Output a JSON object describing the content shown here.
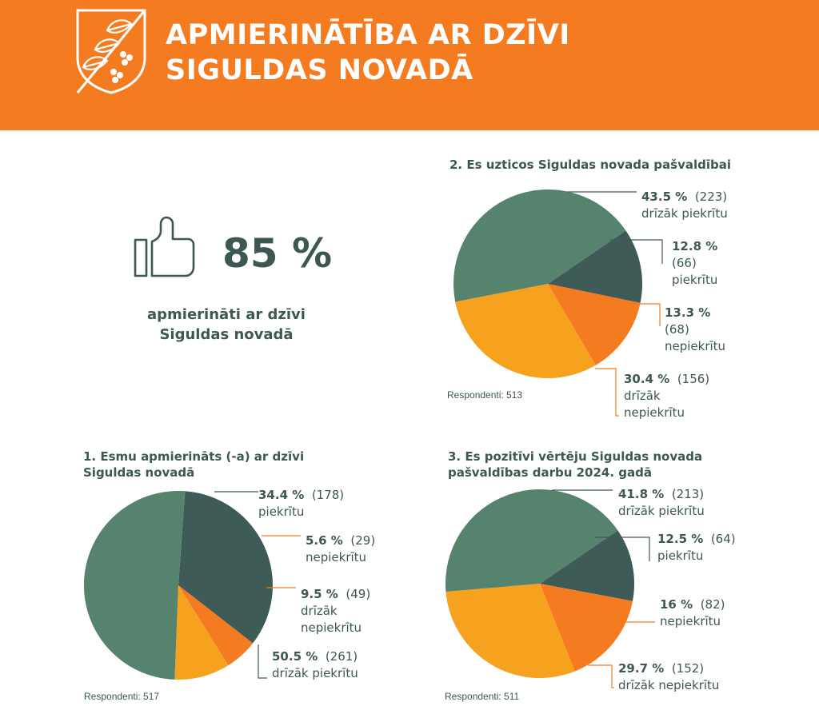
{
  "header": {
    "title_line1": "APMIERINĀTĪBA AR DZĪVI",
    "title_line2": "SIGULDAS NOVADĀ",
    "background": "#f47b20"
  },
  "hero": {
    "icon": "thumbs-up-icon",
    "value": "85 %",
    "caption_line1": "apmierināti ar dzīvi",
    "caption_line2": "Siguldas novadā"
  },
  "colors": {
    "dark_green": "#3e5b58",
    "green": "#56836e",
    "orange": "#f47b20",
    "amber": "#f6a21e",
    "text": "#3d5753"
  },
  "chart_data": [
    {
      "id": "chart1",
      "type": "pie",
      "title_line1": "1. Esmu apmierināts (-a) ar dzīvi",
      "title_line2": "Siguldas novadā",
      "respondents": "Respondenti: 517",
      "slices": [
        {
          "percent": 34.4,
          "percent_text": "34.4 %",
          "count_text": "(178)",
          "label": "piekrītu",
          "color": "#3e5b58"
        },
        {
          "percent": 5.6,
          "percent_text": "5.6 %",
          "count_text": "(29)",
          "label": "nepiekrītu",
          "color": "#f47b20"
        },
        {
          "percent": 9.5,
          "percent_text": "9.5 %",
          "count_text": "(49)",
          "label": "drīzāk nepiekrītu",
          "color": "#f6a21e"
        },
        {
          "percent": 50.5,
          "percent_text": "50.5 %",
          "count_text": "(261)",
          "label": "drīzāk piekrītu",
          "color": "#56836e"
        }
      ]
    },
    {
      "id": "chart2",
      "type": "pie",
      "title_line1": "2. Es uzticos Siguldas novada pašvaldībai",
      "title_line2": "",
      "respondents": "Respondenti: 513",
      "slices": [
        {
          "percent": 12.8,
          "percent_text": "12.8 %",
          "count_text": "(66)",
          "label": "piekrītu",
          "color": "#3e5b58"
        },
        {
          "percent": 13.3,
          "percent_text": "13.3 %",
          "count_text": "(68)",
          "label": "nepiekrītu",
          "color": "#f47b20"
        },
        {
          "percent": 30.4,
          "percent_text": "30.4 %",
          "count_text": "(156)",
          "label": "drīzāk nepiekrītu",
          "color": "#f6a21e"
        },
        {
          "percent": 43.5,
          "percent_text": "43.5 %",
          "count_text": "(223)",
          "label": "drīzāk piekrītu",
          "color": "#56836e"
        }
      ]
    },
    {
      "id": "chart3",
      "type": "pie",
      "title_line1": "3. Es pozitīvi vērtēju Siguldas novada",
      "title_line2": "pašvaldības darbu 2024. gadā",
      "respondents": "Respondenti: 511",
      "slices": [
        {
          "percent": 12.5,
          "percent_text": "12.5 %",
          "count_text": "(64)",
          "label": "piekrītu",
          "color": "#3e5b58"
        },
        {
          "percent": 16,
          "percent_text": "16 %",
          "count_text": "(82)",
          "label": "nepiekrītu",
          "color": "#f47b20"
        },
        {
          "percent": 29.7,
          "percent_text": "29.7 %",
          "count_text": "(152)",
          "label": "drīzāk nepiekrītu",
          "color": "#f6a21e"
        },
        {
          "percent": 41.8,
          "percent_text": "41.8 %",
          "count_text": "(213)",
          "label": "drīzāk piekrītu",
          "color": "#56836e"
        }
      ]
    }
  ]
}
